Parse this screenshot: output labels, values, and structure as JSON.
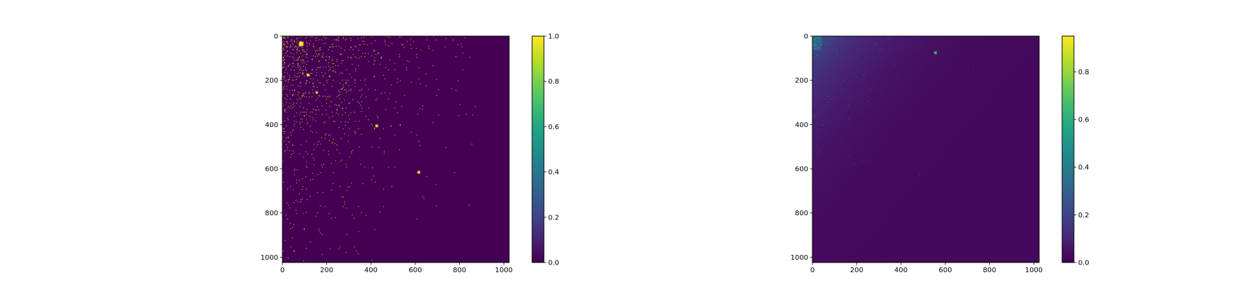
{
  "chart_data": [
    {
      "type": "heatmap",
      "title": "",
      "xlabel": "",
      "ylabel": "",
      "xlim": [
        0,
        1024
      ],
      "ylim": [
        1024,
        0
      ],
      "xticks": [
        "0",
        "200",
        "400",
        "600",
        "800",
        "1000"
      ],
      "yticks": [
        "0",
        "200",
        "400",
        "600",
        "800",
        "1000"
      ],
      "colormap": "viridis",
      "colorbar": {
        "min": 0.0,
        "max": 1.0,
        "ticks": [
          "0.0",
          "0.2",
          "0.4",
          "0.6",
          "0.8",
          "1.0"
        ]
      },
      "description_of_values": "binary mask: sparse 1.0 pixels concentrated toward the top-left, density decreasing toward bottom-right; notable blobs near (80,30), (420,400), (610,610)"
    },
    {
      "type": "heatmap",
      "title": "",
      "xlabel": "",
      "ylabel": "",
      "xlim": [
        0,
        1024
      ],
      "ylim": [
        1024,
        0
      ],
      "xticks": [
        "0",
        "200",
        "400",
        "600",
        "800",
        "1000"
      ],
      "yticks": [
        "0",
        "200",
        "400",
        "600",
        "800",
        "1000"
      ],
      "colormap": "viridis",
      "colorbar": {
        "min": 0.0,
        "max": 0.95,
        "ticks": [
          "0.0",
          "0.2",
          "0.4",
          "0.6",
          "0.8"
        ]
      },
      "description_of_values": "continuous low values with higher intensity (0.3-0.6) in the top-left corner fading toward bottom-right; small hot spot near (555,75)"
    }
  ]
}
